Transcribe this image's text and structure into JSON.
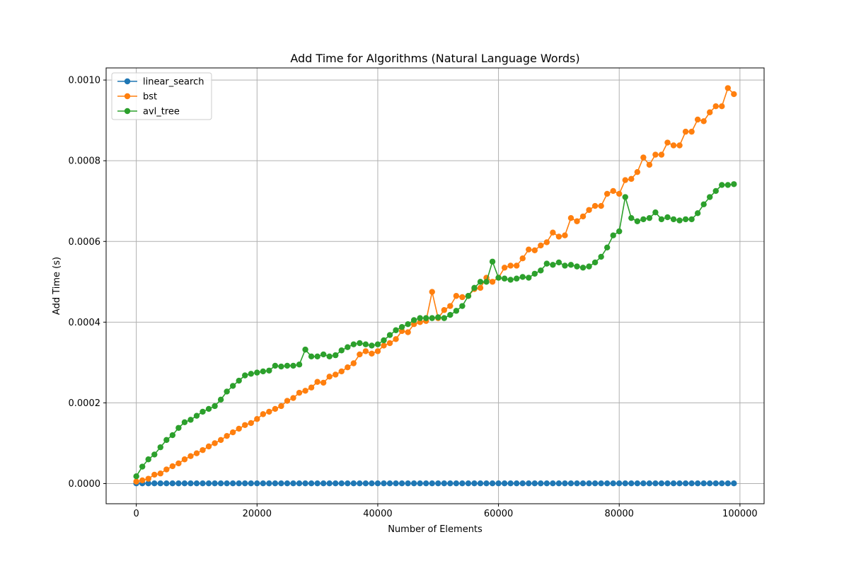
{
  "chart_data": {
    "type": "line",
    "title": "Add Time for Algorithms (Natural Language Words)",
    "xlabel": "Number of Elements",
    "ylabel": "Add Time (s)",
    "xlim": [
      -5000,
      104000
    ],
    "ylim": [
      -5e-05,
      0.00103
    ],
    "xticks": [
      0,
      20000,
      40000,
      60000,
      80000,
      100000
    ],
    "xtick_labels": [
      "0",
      "20000",
      "40000",
      "60000",
      "80000",
      "100000"
    ],
    "yticks": [
      0,
      0.0002,
      0.0004,
      0.0006,
      0.0008,
      0.001
    ],
    "ytick_labels": [
      "0.0000",
      "0.0002",
      "0.0004",
      "0.0006",
      "0.0008",
      "0.0010"
    ],
    "grid": true,
    "legend_position": "top-left",
    "marker": "circle",
    "x": [
      0,
      1000,
      2000,
      3000,
      4000,
      5000,
      6000,
      7000,
      8000,
      9000,
      10000,
      11000,
      12000,
      13000,
      14000,
      15000,
      16000,
      17000,
      18000,
      19000,
      20000,
      21000,
      22000,
      23000,
      24000,
      25000,
      26000,
      27000,
      28000,
      29000,
      30000,
      31000,
      32000,
      33000,
      34000,
      35000,
      36000,
      37000,
      38000,
      39000,
      40000,
      41000,
      42000,
      43000,
      44000,
      45000,
      46000,
      47000,
      48000,
      49000,
      50000,
      51000,
      52000,
      53000,
      54000,
      55000,
      56000,
      57000,
      58000,
      59000,
      60000,
      61000,
      62000,
      63000,
      64000,
      65000,
      66000,
      67000,
      68000,
      69000,
      70000,
      71000,
      72000,
      73000,
      74000,
      75000,
      76000,
      77000,
      78000,
      79000,
      80000,
      81000,
      82000,
      83000,
      84000,
      85000,
      86000,
      87000,
      88000,
      89000,
      90000,
      91000,
      92000,
      93000,
      94000,
      95000,
      96000,
      97000,
      98000,
      99000
    ],
    "series": [
      {
        "name": "linear_search",
        "color": "#1f77b4",
        "values": [
          5e-07,
          5e-07,
          5e-07,
          5e-07,
          5e-07,
          5e-07,
          5e-07,
          5e-07,
          5e-07,
          5e-07,
          5e-07,
          5e-07,
          5e-07,
          5e-07,
          5e-07,
          5e-07,
          5e-07,
          5e-07,
          5e-07,
          5e-07,
          5e-07,
          5e-07,
          5e-07,
          5e-07,
          5e-07,
          5e-07,
          5e-07,
          5e-07,
          5e-07,
          5e-07,
          5e-07,
          5e-07,
          5e-07,
          5e-07,
          5e-07,
          5e-07,
          5e-07,
          5e-07,
          5e-07,
          5e-07,
          5e-07,
          5e-07,
          5e-07,
          5e-07,
          5e-07,
          5e-07,
          5e-07,
          5e-07,
          5e-07,
          5e-07,
          5e-07,
          5e-07,
          5e-07,
          5e-07,
          5e-07,
          5e-07,
          5e-07,
          5e-07,
          5e-07,
          5e-07,
          5e-07,
          5e-07,
          5e-07,
          5e-07,
          5e-07,
          5e-07,
          5e-07,
          5e-07,
          5e-07,
          5e-07,
          5e-07,
          5e-07,
          5e-07,
          5e-07,
          5e-07,
          5e-07,
          5e-07,
          5e-07,
          5e-07,
          5e-07,
          5e-07,
          5e-07,
          5e-07,
          5e-07,
          5e-07,
          5e-07,
          5e-07,
          5e-07,
          5e-07,
          5e-07,
          5e-07,
          5e-07,
          5e-07,
          5e-07,
          5e-07,
          5e-07,
          5e-07,
          5e-07,
          5e-07,
          5e-07
        ]
      },
      {
        "name": "bst",
        "color": "#ff7f0e",
        "values": [
          5e-06,
          8e-06,
          1.2e-05,
          2.2e-05,
          2.5e-05,
          3.5e-05,
          4.3e-05,
          5e-05,
          6e-05,
          6.8e-05,
          7.5e-05,
          8.3e-05,
          9.2e-05,
          0.0001,
          0.000108,
          0.000118,
          0.000127,
          0.000136,
          0.000145,
          0.00015,
          0.00016,
          0.000172,
          0.000178,
          0.000185,
          0.000192,
          0.000205,
          0.000212,
          0.000225,
          0.00023,
          0.000238,
          0.000252,
          0.00025,
          0.000265,
          0.00027,
          0.000278,
          0.000288,
          0.000298,
          0.00032,
          0.000328,
          0.000322,
          0.000328,
          0.000342,
          0.000348,
          0.000358,
          0.000378,
          0.000375,
          0.000395,
          0.0004,
          0.000403,
          0.000475,
          0.00041,
          0.00043,
          0.00044,
          0.000465,
          0.000462,
          0.000465,
          0.000482,
          0.000485,
          0.00051,
          0.0005,
          0.00051,
          0.000535,
          0.00054,
          0.00054,
          0.000558,
          0.00058,
          0.000578,
          0.00059,
          0.000598,
          0.000622,
          0.000612,
          0.000615,
          0.000658,
          0.00065,
          0.000662,
          0.000678,
          0.000688,
          0.000688,
          0.000718,
          0.000725,
          0.000718,
          0.000752,
          0.000755,
          0.000772,
          0.000808,
          0.00079,
          0.000815,
          0.000815,
          0.000845,
          0.000838,
          0.000838,
          0.000872,
          0.000872,
          0.000902,
          0.000898,
          0.00092,
          0.000935,
          0.000935,
          0.00098,
          0.000965
        ]
      },
      {
        "name": "avl_tree",
        "color": "#2ca02c",
        "values": [
          1.8e-05,
          4.2e-05,
          6e-05,
          7.2e-05,
          9e-05,
          0.000108,
          0.00012,
          0.000138,
          0.000152,
          0.000158,
          0.000168,
          0.000178,
          0.000185,
          0.000192,
          0.000208,
          0.000228,
          0.000242,
          0.000255,
          0.000268,
          0.000272,
          0.000275,
          0.000278,
          0.00028,
          0.000292,
          0.00029,
          0.000292,
          0.000292,
          0.000295,
          0.000332,
          0.000315,
          0.000315,
          0.00032,
          0.000315,
          0.000318,
          0.00033,
          0.000338,
          0.000345,
          0.000348,
          0.000345,
          0.000342,
          0.000345,
          0.000355,
          0.000368,
          0.00038,
          0.000388,
          0.000395,
          0.000405,
          0.00041,
          0.00041,
          0.00041,
          0.000412,
          0.00041,
          0.000418,
          0.000428,
          0.00044,
          0.000465,
          0.000485,
          0.0005,
          0.0005,
          0.00055,
          0.00051,
          0.000508,
          0.000505,
          0.000508,
          0.000512,
          0.00051,
          0.00052,
          0.000528,
          0.000545,
          0.000542,
          0.000548,
          0.00054,
          0.000542,
          0.000538,
          0.000535,
          0.000538,
          0.000548,
          0.000562,
          0.000585,
          0.000615,
          0.000625,
          0.00071,
          0.000658,
          0.00065,
          0.000655,
          0.000658,
          0.000672,
          0.000655,
          0.00066,
          0.000655,
          0.000652,
          0.000655,
          0.000655,
          0.00067,
          0.000692,
          0.00071,
          0.000725,
          0.00074,
          0.00074,
          0.000742
        ]
      }
    ]
  }
}
